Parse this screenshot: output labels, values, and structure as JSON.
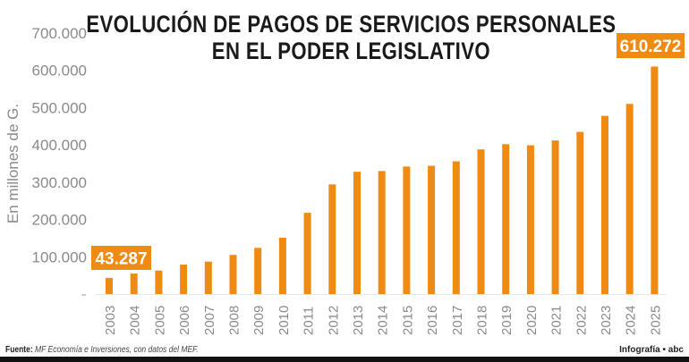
{
  "chart_data": {
    "type": "bar",
    "title": "EVOLUCIÓN DE PAGOS DE SERVICIOS PERSONALES EN EL PODER LEGISLATIVO",
    "title_lines": [
      "EVOLUCIÓN DE PAGOS DE SERVICIOS PERSONALES",
      "EN EL PODER LEGISLATIVO"
    ],
    "xlabel": "",
    "ylabel": "En millones de G.",
    "ylim": [
      0,
      700000
    ],
    "yticks": [
      0,
      100000,
      200000,
      300000,
      400000,
      500000,
      600000,
      700000
    ],
    "ytick_labels": [
      "",
      "100.000",
      "200.000",
      "300.000",
      "400.000",
      "500.000",
      "600.000",
      "700.000"
    ],
    "categories": [
      "2003",
      "2004",
      "2005",
      "2006",
      "2007",
      "2008",
      "2009",
      "2010",
      "2011",
      "2012",
      "2013",
      "2014",
      "2015",
      "2016",
      "2017",
      "2018",
      "2019",
      "2020",
      "2021",
      "2022",
      "2023",
      "2024",
      "2025"
    ],
    "values": [
      43287,
      55000,
      63000,
      79000,
      87000,
      105000,
      124000,
      151000,
      218000,
      294000,
      328000,
      330000,
      342000,
      344000,
      356000,
      388000,
      402000,
      399000,
      412000,
      435000,
      478000,
      510000,
      610272
    ],
    "data_labels": [
      {
        "category": "2003",
        "text": "43.287"
      },
      {
        "category": "2025",
        "text": "610.272"
      }
    ],
    "grid": false,
    "legend": "none",
    "colors": {
      "bar": "#ef8a12",
      "label_box": "#ef8a12",
      "tick_text": "#8a8a8a"
    }
  },
  "footer": {
    "source_label": "Fuente:",
    "source_text": "MF Economía e Inversiones, con datos del MEF.",
    "credit": "Infografía • abc"
  }
}
